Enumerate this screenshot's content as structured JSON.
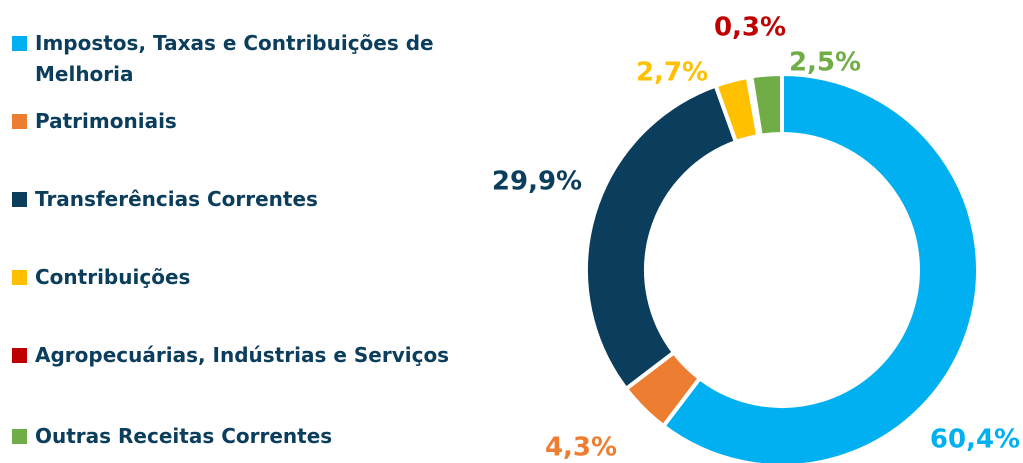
{
  "chart_data": {
    "type": "donut",
    "categories": [
      "Impostos, Taxas e Contribuições de Melhoria",
      "Patrimoniais",
      "Transferências Correntes",
      "Contribuições",
      "Agropecuárias, Indústrias e Serviços",
      "Outras Receitas Correntes"
    ],
    "values": [
      60.4,
      4.3,
      29.9,
      2.7,
      0.3,
      2.5
    ],
    "value_labels": [
      "60,4%",
      "4,3%",
      "29,9%",
      "2,7%",
      "0,3%",
      "2,5%"
    ],
    "colors": [
      "#00b0f0",
      "#ed7d31",
      "#0b3d5c",
      "#ffc000",
      "#c00000",
      "#70ad47"
    ],
    "legend": "left"
  }
}
